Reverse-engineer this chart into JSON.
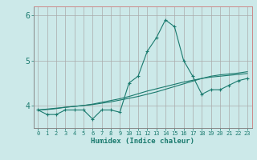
{
  "x": [
    0,
    1,
    2,
    3,
    4,
    5,
    6,
    7,
    8,
    9,
    10,
    11,
    12,
    13,
    14,
    15,
    16,
    17,
    18,
    19,
    20,
    21,
    22,
    23
  ],
  "y_main": [
    3.9,
    3.8,
    3.8,
    3.9,
    3.9,
    3.9,
    3.7,
    3.9,
    3.9,
    3.85,
    4.5,
    4.65,
    5.2,
    5.5,
    5.9,
    5.75,
    5.0,
    4.65,
    4.25,
    4.35,
    4.35,
    4.45,
    4.55,
    4.6
  ],
  "y_trend1": [
    3.9,
    3.92,
    3.94,
    3.96,
    3.98,
    4.0,
    4.02,
    4.05,
    4.08,
    4.12,
    4.16,
    4.2,
    4.25,
    4.3,
    4.36,
    4.42,
    4.48,
    4.54,
    4.6,
    4.65,
    4.68,
    4.7,
    4.72,
    4.75
  ],
  "y_trend2": [
    3.9,
    3.91,
    3.93,
    3.96,
    3.98,
    4.0,
    4.03,
    4.07,
    4.11,
    4.15,
    4.2,
    4.26,
    4.32,
    4.37,
    4.42,
    4.47,
    4.52,
    4.56,
    4.6,
    4.63,
    4.65,
    4.67,
    4.69,
    4.71
  ],
  "bg_color": "#cce9e9",
  "line_color": "#1a7a6e",
  "grid_color": "#aaaaaa",
  "border_color": "#cc8888",
  "tick_color": "#1a7a6e",
  "xlabel": "Humidex (Indice chaleur)",
  "ylim": [
    3.5,
    6.2
  ],
  "xlim": [
    -0.5,
    23.5
  ],
  "yticks": [
    4,
    5,
    6
  ],
  "xtick_labels": [
    "0",
    "1",
    "2",
    "3",
    "4",
    "5",
    "6",
    "7",
    "8",
    "9",
    "10",
    "11",
    "12",
    "13",
    "14",
    "15",
    "16",
    "17",
    "18",
    "19",
    "20",
    "21",
    "22",
    "23"
  ]
}
